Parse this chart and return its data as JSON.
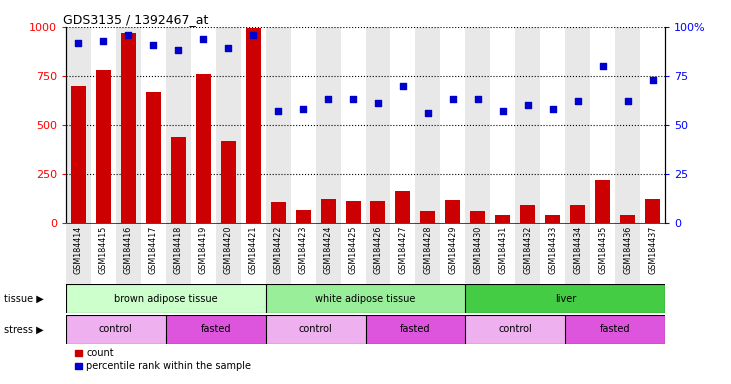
{
  "title": "GDS3135 / 1392467_at",
  "samples": [
    "GSM184414",
    "GSM184415",
    "GSM184416",
    "GSM184417",
    "GSM184418",
    "GSM184419",
    "GSM184420",
    "GSM184421",
    "GSM184422",
    "GSM184423",
    "GSM184424",
    "GSM184425",
    "GSM184426",
    "GSM184427",
    "GSM184428",
    "GSM184429",
    "GSM184430",
    "GSM184431",
    "GSM184432",
    "GSM184433",
    "GSM184434",
    "GSM184435",
    "GSM184436",
    "GSM184437"
  ],
  "counts": [
    700,
    780,
    970,
    665,
    440,
    760,
    415,
    995,
    105,
    65,
    120,
    110,
    110,
    160,
    60,
    115,
    60,
    40,
    90,
    40,
    90,
    220,
    40,
    120
  ],
  "percentile": [
    92,
    93,
    96,
    91,
    88,
    94,
    89,
    96,
    57,
    58,
    63,
    63,
    61,
    70,
    56,
    63,
    63,
    57,
    60,
    58,
    62,
    80,
    62,
    73
  ],
  "tissue_groups": [
    {
      "label": "brown adipose tissue",
      "start": 0,
      "end": 7,
      "color": "#ccffcc"
    },
    {
      "label": "white adipose tissue",
      "start": 8,
      "end": 15,
      "color": "#99ee99"
    },
    {
      "label": "liver",
      "start": 16,
      "end": 23,
      "color": "#44cc44"
    }
  ],
  "stress_groups": [
    {
      "label": "control",
      "start": 0,
      "end": 3,
      "color": "#eeb0ee"
    },
    {
      "label": "fasted",
      "start": 4,
      "end": 7,
      "color": "#dd55dd"
    },
    {
      "label": "control",
      "start": 8,
      "end": 11,
      "color": "#eeb0ee"
    },
    {
      "label": "fasted",
      "start": 12,
      "end": 15,
      "color": "#dd55dd"
    },
    {
      "label": "control",
      "start": 16,
      "end": 19,
      "color": "#eeb0ee"
    },
    {
      "label": "fasted",
      "start": 20,
      "end": 23,
      "color": "#dd55dd"
    }
  ],
  "bar_color": "#cc0000",
  "dot_color": "#0000cc",
  "ylim_left": [
    0,
    1000
  ],
  "ylim_right": [
    0,
    100
  ],
  "yticks_left": [
    0,
    250,
    500,
    750,
    1000
  ],
  "yticks_right": [
    0,
    25,
    50,
    75,
    100
  ],
  "tissue_label": "tissue",
  "stress_label": "stress",
  "legend_count": "count",
  "legend_pct": "percentile rank within the sample",
  "col_bg_even": "#e8e8e8",
  "col_bg_odd": "#ffffff"
}
